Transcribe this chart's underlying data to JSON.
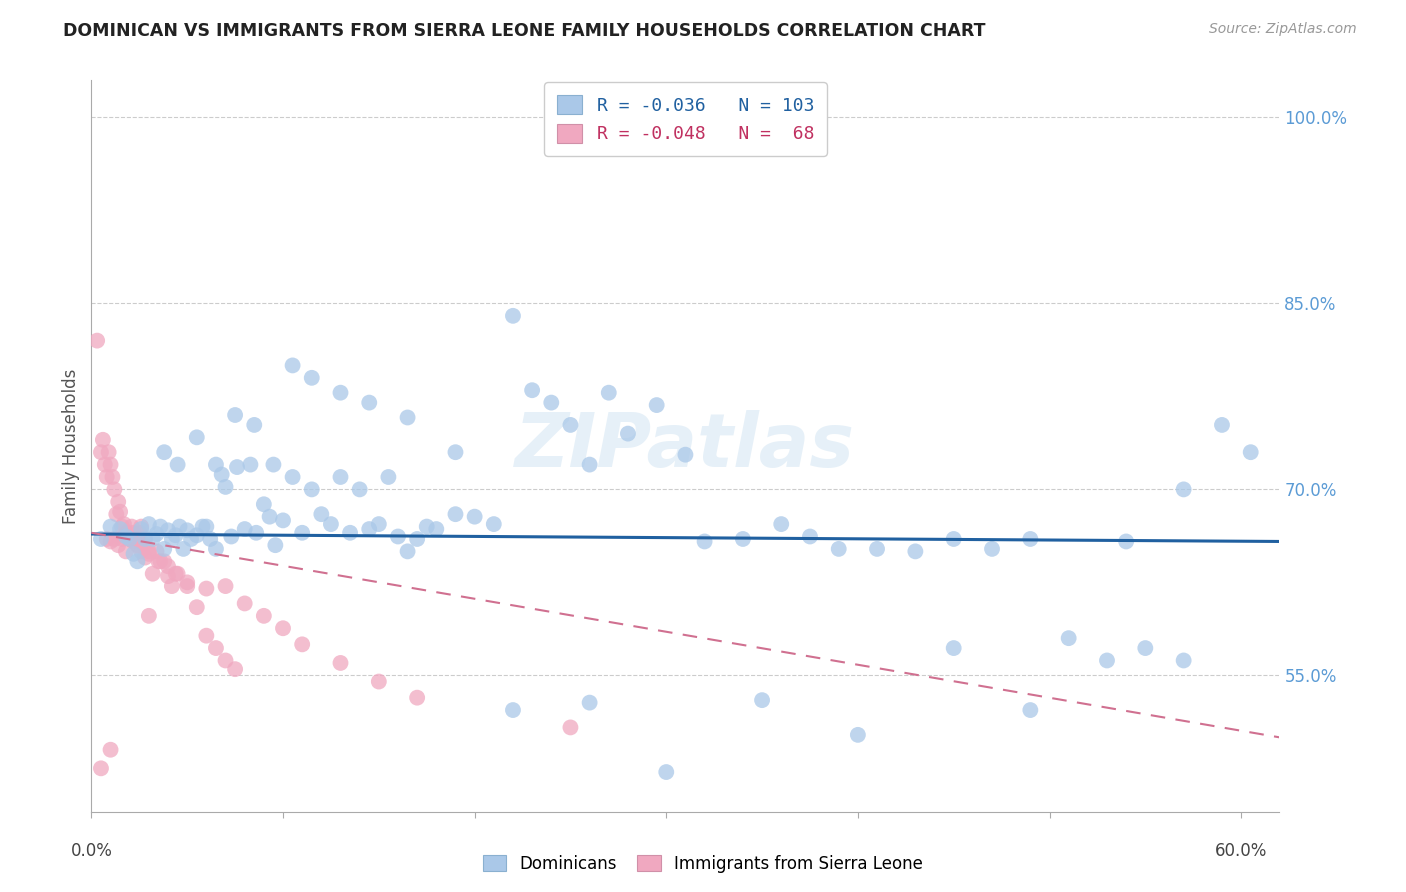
{
  "title": "DOMINICAN VS IMMIGRANTS FROM SIERRA LEONE FAMILY HOUSEHOLDS CORRELATION CHART",
  "source": "Source: ZipAtlas.com",
  "ylabel": "Family Households",
  "ytick_labels": [
    "100.0%",
    "85.0%",
    "70.0%",
    "55.0%"
  ],
  "ytick_values": [
    1.0,
    0.85,
    0.7,
    0.55
  ],
  "xtick_positions": [
    0.0,
    0.1,
    0.2,
    0.3,
    0.4,
    0.5,
    0.6
  ],
  "xlim": [
    0.0,
    0.62
  ],
  "ylim": [
    0.44,
    1.03
  ],
  "blue_color": "#aac8e8",
  "pink_color": "#f0a8c0",
  "blue_line_color": "#2060a0",
  "pink_line_color": "#d07090",
  "watermark": "ZIPatlas",
  "axis_label_color": "#5b9bd5",
  "grid_color": "#cccccc",
  "blue_scatter_x": [
    0.005,
    0.01,
    0.015,
    0.018,
    0.02,
    0.022,
    0.024,
    0.026,
    0.028,
    0.03,
    0.032,
    0.034,
    0.036,
    0.038,
    0.04,
    0.042,
    0.044,
    0.046,
    0.048,
    0.05,
    0.052,
    0.055,
    0.058,
    0.06,
    0.062,
    0.065,
    0.068,
    0.07,
    0.073,
    0.076,
    0.08,
    0.083,
    0.086,
    0.09,
    0.093,
    0.096,
    0.1,
    0.105,
    0.11,
    0.115,
    0.12,
    0.125,
    0.13,
    0.135,
    0.14,
    0.145,
    0.15,
    0.155,
    0.16,
    0.165,
    0.17,
    0.175,
    0.18,
    0.19,
    0.2,
    0.21,
    0.22,
    0.23,
    0.24,
    0.25,
    0.26,
    0.27,
    0.28,
    0.295,
    0.31,
    0.32,
    0.34,
    0.36,
    0.375,
    0.39,
    0.41,
    0.43,
    0.45,
    0.47,
    0.49,
    0.51,
    0.53,
    0.55,
    0.57,
    0.59,
    0.038,
    0.045,
    0.055,
    0.065,
    0.075,
    0.085,
    0.095,
    0.105,
    0.115,
    0.13,
    0.145,
    0.165,
    0.19,
    0.22,
    0.26,
    0.3,
    0.35,
    0.4,
    0.45,
    0.49,
    0.54,
    0.57,
    0.605
  ],
  "blue_scatter_y": [
    0.66,
    0.67,
    0.668,
    0.662,
    0.66,
    0.648,
    0.642,
    0.668,
    0.66,
    0.672,
    0.66,
    0.664,
    0.67,
    0.652,
    0.667,
    0.66,
    0.663,
    0.67,
    0.652,
    0.667,
    0.66,
    0.663,
    0.67,
    0.67,
    0.66,
    0.72,
    0.712,
    0.702,
    0.662,
    0.718,
    0.668,
    0.72,
    0.665,
    0.688,
    0.678,
    0.655,
    0.675,
    0.71,
    0.665,
    0.7,
    0.68,
    0.672,
    0.71,
    0.665,
    0.7,
    0.668,
    0.672,
    0.71,
    0.662,
    0.65,
    0.66,
    0.67,
    0.668,
    0.68,
    0.678,
    0.672,
    0.84,
    0.78,
    0.77,
    0.752,
    0.72,
    0.778,
    0.745,
    0.768,
    0.728,
    0.658,
    0.66,
    0.672,
    0.662,
    0.652,
    0.652,
    0.65,
    0.66,
    0.652,
    0.66,
    0.58,
    0.562,
    0.572,
    0.562,
    0.752,
    0.73,
    0.72,
    0.742,
    0.652,
    0.76,
    0.752,
    0.72,
    0.8,
    0.79,
    0.778,
    0.77,
    0.758,
    0.73,
    0.522,
    0.528,
    0.472,
    0.53,
    0.502,
    0.572,
    0.522,
    0.658,
    0.7,
    0.73
  ],
  "pink_scatter_x": [
    0.003,
    0.005,
    0.006,
    0.007,
    0.008,
    0.009,
    0.01,
    0.011,
    0.012,
    0.013,
    0.014,
    0.015,
    0.016,
    0.017,
    0.018,
    0.019,
    0.02,
    0.021,
    0.022,
    0.023,
    0.024,
    0.025,
    0.026,
    0.027,
    0.028,
    0.03,
    0.032,
    0.034,
    0.036,
    0.038,
    0.04,
    0.042,
    0.044,
    0.05,
    0.055,
    0.06,
    0.065,
    0.07,
    0.075,
    0.008,
    0.01,
    0.012,
    0.014,
    0.016,
    0.018,
    0.02,
    0.022,
    0.024,
    0.026,
    0.028,
    0.03,
    0.035,
    0.04,
    0.045,
    0.05,
    0.06,
    0.07,
    0.08,
    0.09,
    0.1,
    0.11,
    0.13,
    0.15,
    0.17,
    0.25,
    0.03,
    0.005,
    0.01
  ],
  "pink_scatter_y": [
    0.82,
    0.73,
    0.74,
    0.72,
    0.71,
    0.73,
    0.72,
    0.71,
    0.7,
    0.68,
    0.69,
    0.682,
    0.67,
    0.672,
    0.665,
    0.665,
    0.66,
    0.67,
    0.665,
    0.66,
    0.66,
    0.665,
    0.67,
    0.656,
    0.66,
    0.65,
    0.632,
    0.65,
    0.642,
    0.642,
    0.63,
    0.622,
    0.632,
    0.622,
    0.605,
    0.582,
    0.572,
    0.562,
    0.555,
    0.66,
    0.658,
    0.66,
    0.655,
    0.66,
    0.65,
    0.66,
    0.658,
    0.655,
    0.65,
    0.645,
    0.648,
    0.642,
    0.638,
    0.632,
    0.625,
    0.62,
    0.622,
    0.608,
    0.598,
    0.588,
    0.575,
    0.56,
    0.545,
    0.532,
    0.508,
    0.598,
    0.475,
    0.49
  ],
  "blue_trendline_x": [
    0.0,
    0.62
  ],
  "blue_trendline_y": [
    0.664,
    0.658
  ],
  "pink_trendline_x": [
    0.0,
    0.62
  ],
  "pink_trendline_y": [
    0.665,
    0.5
  ]
}
